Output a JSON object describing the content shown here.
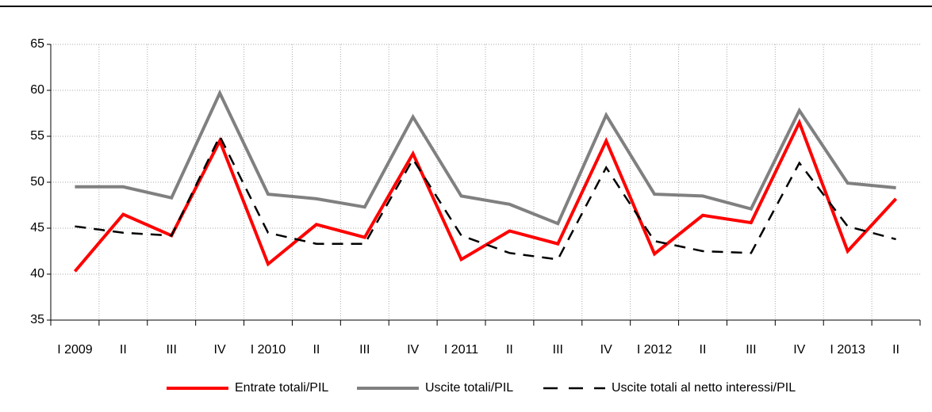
{
  "chart_data": {
    "type": "line",
    "categories": [
      "I 2009",
      "II",
      "III",
      "IV",
      "I 2010",
      "II",
      "III",
      "IV",
      "I 2011",
      "II",
      "III",
      "IV",
      "I 2012",
      "II",
      "III",
      "IV",
      "I 2013",
      "II"
    ],
    "series": [
      {
        "name": "Entrate totali/PIL",
        "color": "#ff0000",
        "dash": "solid",
        "values": [
          40.3,
          46.5,
          44.2,
          54.5,
          41.1,
          45.4,
          44.0,
          53.1,
          41.6,
          44.7,
          43.3,
          54.5,
          42.2,
          46.4,
          45.6,
          56.5,
          42.5,
          48.2
        ]
      },
      {
        "name": "Uscite totali/PIL",
        "color": "#808080",
        "dash": "solid",
        "values": [
          49.5,
          49.5,
          48.3,
          59.7,
          48.7,
          48.2,
          47.3,
          57.1,
          48.5,
          47.6,
          45.5,
          57.3,
          48.7,
          48.5,
          47.1,
          57.8,
          49.9,
          49.4
        ]
      },
      {
        "name": "Uscite totali al netto interessi/PIL",
        "color": "#000000",
        "dash": "dashed",
        "values": [
          45.2,
          44.5,
          44.2,
          55.0,
          44.5,
          43.3,
          43.3,
          52.5,
          44.2,
          42.3,
          41.6,
          51.6,
          43.6,
          42.5,
          42.3,
          52.1,
          45.2,
          43.8
        ]
      }
    ],
    "ylim": [
      35,
      65
    ],
    "yticks": [
      35,
      40,
      45,
      50,
      55,
      60,
      65
    ],
    "grid": true,
    "legend": "bottom"
  }
}
